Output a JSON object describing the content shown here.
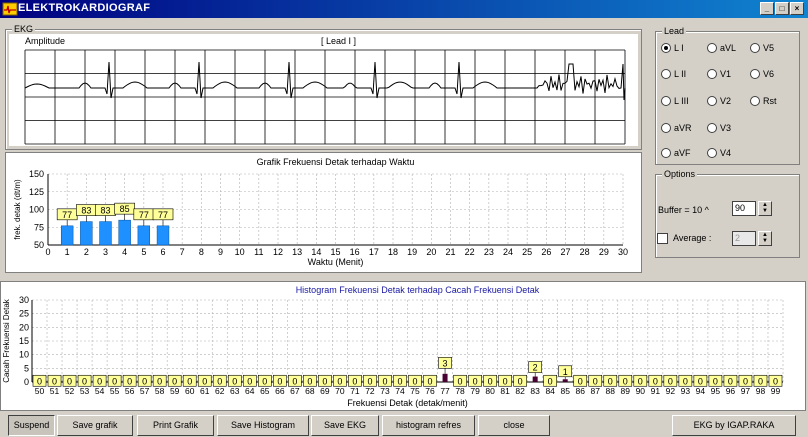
{
  "window": {
    "title": "ELEKTROKARDIOGRAF"
  },
  "ekg": {
    "frame_label": "EKG",
    "amplitude_label": "Amplitude",
    "lead_label": "[ Lead I ]"
  },
  "lead": {
    "frame_label": "Lead",
    "options": [
      {
        "label": "L I",
        "selected": true
      },
      {
        "label": "aVL",
        "selected": false
      },
      {
        "label": "V5",
        "selected": false
      },
      {
        "label": "L II",
        "selected": false
      },
      {
        "label": "V1",
        "selected": false
      },
      {
        "label": "V6",
        "selected": false
      },
      {
        "label": "L III",
        "selected": false
      },
      {
        "label": "V2",
        "selected": false
      },
      {
        "label": "Rst",
        "selected": false
      },
      {
        "label": "aVR",
        "selected": false
      },
      {
        "label": "V3",
        "selected": false
      },
      {
        "label": "aVF",
        "selected": false
      },
      {
        "label": "V4",
        "selected": false
      }
    ]
  },
  "options": {
    "frame_label": "Options",
    "buffer_label": "Buffer = 10 ^",
    "buffer_value": "90",
    "average_label": "Average :",
    "average_value": "2",
    "average_checked": false
  },
  "chart_data": [
    {
      "type": "bar",
      "title": "Grafik Frekuensi Detak terhadap Waktu",
      "xlabel": "Waktu (Menit)",
      "ylabel": "frek. detak (dt/m)",
      "xlim": [
        0,
        30
      ],
      "ylim": [
        50,
        150
      ],
      "yticks": [
        50,
        75,
        100,
        125,
        150
      ],
      "x": [
        1,
        2,
        3,
        4,
        5,
        6
      ],
      "values": [
        77,
        83,
        83,
        85,
        77,
        77
      ],
      "data_labels": [
        "77",
        "83",
        "83",
        "85",
        "77",
        "77"
      ],
      "bar_color": "#1e90ff",
      "grid": true
    },
    {
      "type": "bar",
      "title": "Histogram Frekuensi Detak terhadap Cacah Frekuensi Detak",
      "xlabel": "Frekuensi Detak (detak/menit)",
      "ylabel": "Cacah Frekuensi Detak",
      "xlim": [
        50,
        99
      ],
      "ylim": [
        0,
        30
      ],
      "yticks": [
        0,
        5,
        10,
        15,
        20,
        25,
        30
      ],
      "categories": [
        "50",
        "51",
        "52",
        "53",
        "54",
        "55",
        "56",
        "57",
        "58",
        "59",
        "60",
        "61",
        "62",
        "63",
        "64",
        "65",
        "66",
        "67",
        "68",
        "69",
        "70",
        "71",
        "72",
        "73",
        "74",
        "75",
        "76",
        "77",
        "78",
        "79",
        "80",
        "81",
        "82",
        "83",
        "84",
        "85",
        "86",
        "87",
        "88",
        "89",
        "90",
        "91",
        "92",
        "93",
        "94",
        "95",
        "96",
        "97",
        "98",
        "99"
      ],
      "values": [
        0,
        0,
        0,
        0,
        0,
        0,
        0,
        0,
        0,
        0,
        0,
        0,
        0,
        0,
        0,
        0,
        0,
        0,
        0,
        0,
        0,
        0,
        0,
        0,
        0,
        0,
        0,
        3,
        0,
        0,
        0,
        0,
        0,
        2,
        0,
        1,
        0,
        0,
        0,
        0,
        0,
        0,
        0,
        0,
        0,
        0,
        0,
        0,
        0,
        0
      ],
      "bar_color": "#4b0033",
      "title_color": "#1a1aa6",
      "grid": true
    }
  ],
  "buttons": {
    "suspend": "Suspend",
    "save_grafik": "Save grafik",
    "print_grafik": "Print Grafik",
    "save_histogram": "Save Histogram",
    "save_ekg": "Save EKG",
    "histogram_refresh": "histogram refres",
    "close": "close",
    "credit": "EKG by IGAP.RAKA"
  },
  "colors": {
    "titlebar": "#000080",
    "label_box": "#ffff99",
    "face": "#d4d0c8"
  }
}
